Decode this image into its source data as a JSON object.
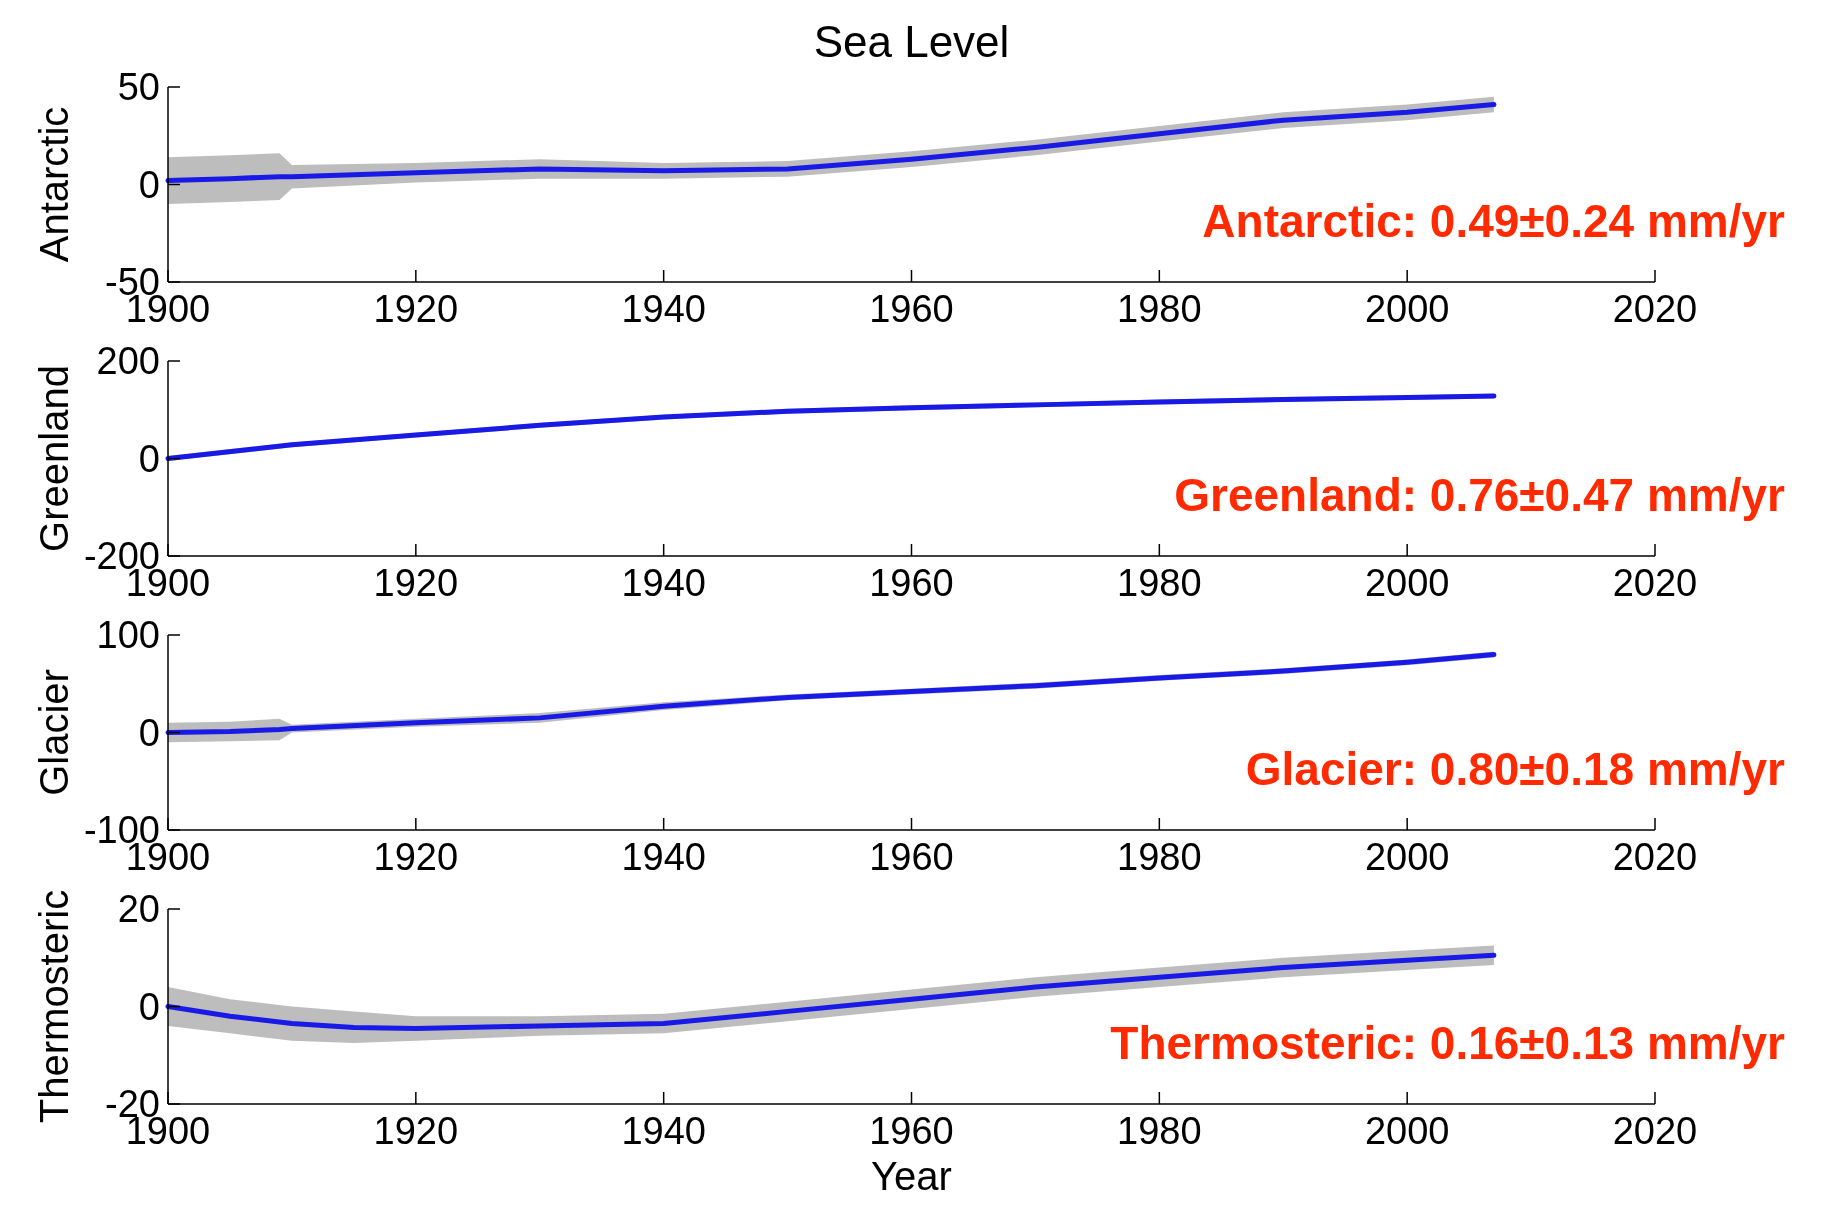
{
  "chart_data": [
    {
      "type": "line",
      "title": "Sea Level",
      "ylabel": "Antarctic",
      "x": [
        1900,
        1905,
        1909,
        1910,
        1920,
        1930,
        1940,
        1950,
        1960,
        1970,
        1980,
        1990,
        2000,
        2007
      ],
      "series": [
        {
          "color": "#1a1ae6",
          "values": [
            2,
            3,
            4,
            4,
            6,
            8,
            7,
            8,
            13,
            19,
            26,
            33,
            37,
            41
          ],
          "lower": [
            -10,
            -9,
            -8,
            -2,
            1,
            3,
            3,
            4,
            9,
            15,
            22,
            29,
            33,
            37
          ],
          "upper": [
            14,
            15,
            16,
            10,
            11,
            13,
            11,
            12,
            17,
            23,
            30,
            37,
            41,
            45
          ]
        }
      ],
      "xlim": [
        1900,
        2020
      ],
      "ylim": [
        -50,
        50
      ],
      "xticks": [
        1900,
        1920,
        1940,
        1960,
        1980,
        2000,
        2020
      ],
      "yticks": [
        -50,
        0,
        50
      ],
      "annotations": [
        "Antarctic: 0.49±0.24 mm/yr"
      ]
    },
    {
      "type": "line",
      "ylabel": "Greenland",
      "x": [
        1900,
        1910,
        1920,
        1930,
        1940,
        1950,
        1960,
        1970,
        1980,
        1990,
        2000,
        2007
      ],
      "series": [
        {
          "color": "#1a1ae6",
          "values": [
            0,
            28,
            48,
            68,
            85,
            97,
            104,
            110,
            116,
            121,
            125,
            128
          ],
          "lower": [
            -5,
            23,
            43,
            63,
            80,
            92,
            99,
            105,
            111,
            116,
            120,
            123
          ],
          "upper": [
            5,
            33,
            53,
            73,
            90,
            102,
            109,
            115,
            121,
            126,
            130,
            133
          ]
        }
      ],
      "xlim": [
        1900,
        2020
      ],
      "ylim": [
        -200,
        200
      ],
      "xticks": [
        1900,
        1920,
        1940,
        1960,
        1980,
        2000,
        2020
      ],
      "yticks": [
        -200,
        0,
        200
      ],
      "annotations": [
        "Greenland: 0.76±0.47 mm/yr"
      ]
    },
    {
      "type": "line",
      "ylabel": "Glacier",
      "x": [
        1900,
        1905,
        1909,
        1910,
        1920,
        1930,
        1940,
        1950,
        1960,
        1970,
        1980,
        1990,
        2000,
        2007
      ],
      "series": [
        {
          "color": "#1a1ae6",
          "values": [
            0,
            1,
            3,
            4,
            10,
            15,
            27,
            36,
            42,
            48,
            56,
            63,
            72,
            80
          ],
          "lower": [
            -10,
            -9,
            -8,
            0,
            6,
            10,
            23,
            33,
            39,
            45,
            53,
            60,
            69,
            77
          ],
          "upper": [
            10,
            11,
            14,
            8,
            14,
            20,
            31,
            39,
            45,
            51,
            59,
            66,
            75,
            83
          ]
        }
      ],
      "xlim": [
        1900,
        2020
      ],
      "ylim": [
        -100,
        100
      ],
      "xticks": [
        1900,
        1920,
        1940,
        1960,
        1980,
        2000,
        2020
      ],
      "yticks": [
        -100,
        0,
        100
      ],
      "annotations": [
        "Glacier: 0.80±0.18 mm/yr"
      ]
    },
    {
      "type": "line",
      "ylabel": "Thermosteric",
      "xlabel": "Year",
      "x": [
        1900,
        1905,
        1910,
        1915,
        1920,
        1930,
        1940,
        1950,
        1960,
        1970,
        1980,
        1990,
        2000,
        2007
      ],
      "series": [
        {
          "color": "#1a1ae6",
          "values": [
            0,
            -2,
            -3.5,
            -4.3,
            -4.5,
            -4,
            -3.5,
            -1,
            1.5,
            4,
            6,
            8,
            9.5,
            10.5
          ],
          "lower": [
            -4,
            -5.5,
            -7,
            -7.5,
            -7,
            -6,
            -5.5,
            -3,
            -0.5,
            2,
            4,
            6,
            7.5,
            8.5
          ],
          "upper": [
            4,
            1.5,
            0,
            -1,
            -2,
            -2,
            -1.5,
            1,
            3.5,
            6,
            8,
            10,
            11.5,
            12.5
          ]
        }
      ],
      "xlim": [
        1900,
        2020
      ],
      "ylim": [
        -20,
        20
      ],
      "xticks": [
        1900,
        1920,
        1940,
        1960,
        1980,
        2000,
        2020
      ],
      "yticks": [
        -20,
        0,
        20
      ],
      "annotations": [
        "Thermosteric: 0.16±0.13 mm/yr"
      ]
    }
  ]
}
